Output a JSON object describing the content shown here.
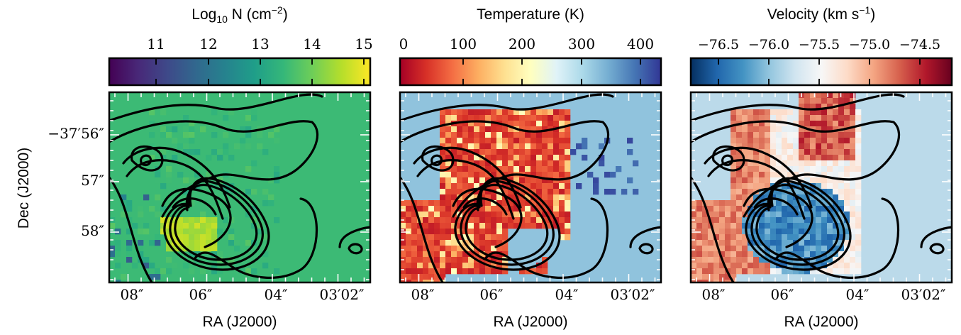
{
  "chart_data": {
    "type": "heatmap",
    "ylabel": "Dec (J2000)",
    "y_ticks": [
      "−37′56″",
      "57″",
      "58″"
    ],
    "contour_color": "#000000",
    "panels": [
      {
        "colorbar_label": "Log",
        "colorbar_label_sub": "10",
        "colorbar_label_tail": " N (cm",
        "colorbar_label_sup": "−2",
        "colorbar_label_end": ")",
        "colorbar_ticks": [
          "11",
          "12",
          "13",
          "14",
          "15"
        ],
        "colorbar_range": [
          10.2,
          15.2
        ],
        "colormap": "viridis",
        "background_value": 13.6,
        "xlabel": "RA (J2000)",
        "x_ticks": [
          "08″",
          "06″",
          "04″",
          "03′02″"
        ]
      },
      {
        "colorbar_label": "Temperature (K)",
        "colorbar_ticks": [
          "0",
          "100",
          "200",
          "300",
          "400"
        ],
        "colorbar_range": [
          0,
          440
        ],
        "colormap": "RdYlBu",
        "background_value": 330,
        "xlabel": "RA (J2000)",
        "x_ticks": [
          "08″",
          "06″",
          "04″",
          "03′02″"
        ]
      },
      {
        "colorbar_label": "Velocity (km s",
        "colorbar_label_sup": "−1",
        "colorbar_label_end": ")",
        "colorbar_ticks": [
          "−76.5",
          "−76.0",
          "−75.5",
          "−75.0",
          "−74.5"
        ],
        "colorbar_range": [
          -76.85,
          -74.25
        ],
        "colormap": "RdBu_r",
        "background_value": -75.9,
        "xlabel": "RA (J2000)",
        "x_ticks": [
          "08″",
          "06″",
          "04″",
          "03′02″"
        ]
      }
    ]
  }
}
